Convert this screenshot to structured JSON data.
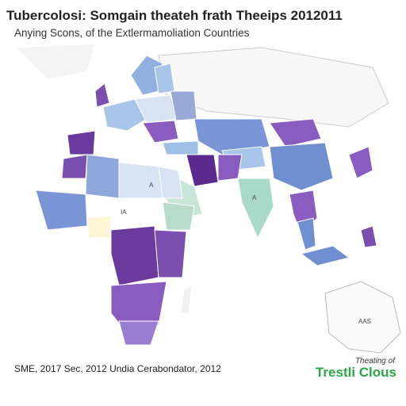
{
  "header": {
    "title": "Tubercolosi: Somgain theateh frath Theeips 2012011",
    "subtitle": "Anying Scons, of the Extlermamoliation Countries"
  },
  "map_labels": [
    "A",
    "IA",
    "A",
    "AAS"
  ],
  "footer": {
    "source": "SME, 2017 Sec, 2012 Undia Cerabondator, 2012",
    "logo": {
      "line1": "Theating of",
      "line2": "Trestli Clous"
    }
  }
}
